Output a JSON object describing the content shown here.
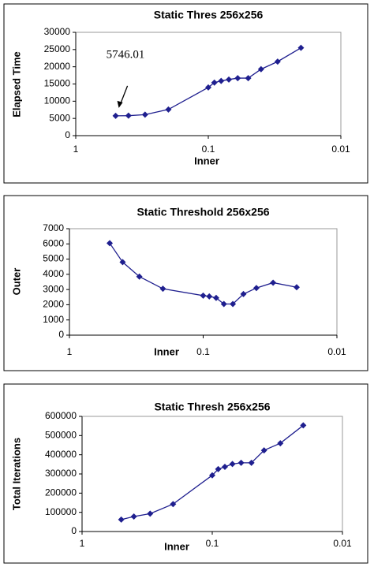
{
  "chart_data": [
    {
      "type": "line",
      "title": "Static Thres 256x256",
      "xlabel": "Inner",
      "ylabel": "Elapsed Time",
      "log_x": true,
      "x": [
        0.5,
        0.4,
        0.3,
        0.2,
        0.1,
        0.09,
        0.08,
        0.07,
        0.06,
        0.05,
        0.04,
        0.03,
        0.02
      ],
      "series": [
        {
          "color": "#1f1f8f",
          "values": [
            5746.01,
            5800,
            6100,
            7600,
            14000,
            15400,
            15900,
            16300,
            16700,
            16700,
            19300,
            21500,
            25500
          ]
        }
      ],
      "xlim": [
        1,
        0.01
      ],
      "xticks": [
        1,
        0.1,
        0.01
      ],
      "ylim": [
        0,
        30000
      ],
      "yticks": [
        0,
        5000,
        10000,
        15000,
        20000,
        25000,
        30000
      ],
      "annotation": "5746.01"
    },
    {
      "type": "line",
      "title": "Static Threshold 256x256",
      "xlabel": "Inner",
      "ylabel": "Outer",
      "log_x": true,
      "x": [
        0.5,
        0.4,
        0.3,
        0.2,
        0.1,
        0.09,
        0.08,
        0.07,
        0.06,
        0.05,
        0.04,
        0.03,
        0.02
      ],
      "series": [
        {
          "color": "#1f1f8f",
          "values": [
            6050,
            4800,
            3850,
            3050,
            2600,
            2550,
            2450,
            2050,
            2050,
            2700,
            3100,
            3450,
            3150
          ]
        }
      ],
      "xlim": [
        1,
        0.01
      ],
      "xticks": [
        1,
        0.1,
        0.01
      ],
      "ylim": [
        0,
        7000
      ],
      "yticks": [
        0,
        1000,
        2000,
        3000,
        4000,
        5000,
        6000,
        7000
      ]
    },
    {
      "type": "line",
      "title": "Static Thresh 256x256",
      "xlabel": "Inner",
      "ylabel": "Total Iterations",
      "log_x": true,
      "x": [
        0.5,
        0.4,
        0.3,
        0.2,
        0.1,
        0.09,
        0.08,
        0.07,
        0.06,
        0.05,
        0.04,
        0.03,
        0.02
      ],
      "series": [
        {
          "color": "#1f1f8f",
          "values": [
            62000,
            78000,
            93000,
            143000,
            293000,
            325000,
            337000,
            352000,
            358000,
            358000,
            423000,
            460000,
            553000
          ]
        }
      ],
      "xlim": [
        1,
        0.01
      ],
      "xticks": [
        1,
        0.1,
        0.01
      ],
      "ylim": [
        0,
        600000
      ],
      "yticks": [
        0,
        100000,
        200000,
        300000,
        400000,
        500000,
        600000
      ]
    }
  ]
}
